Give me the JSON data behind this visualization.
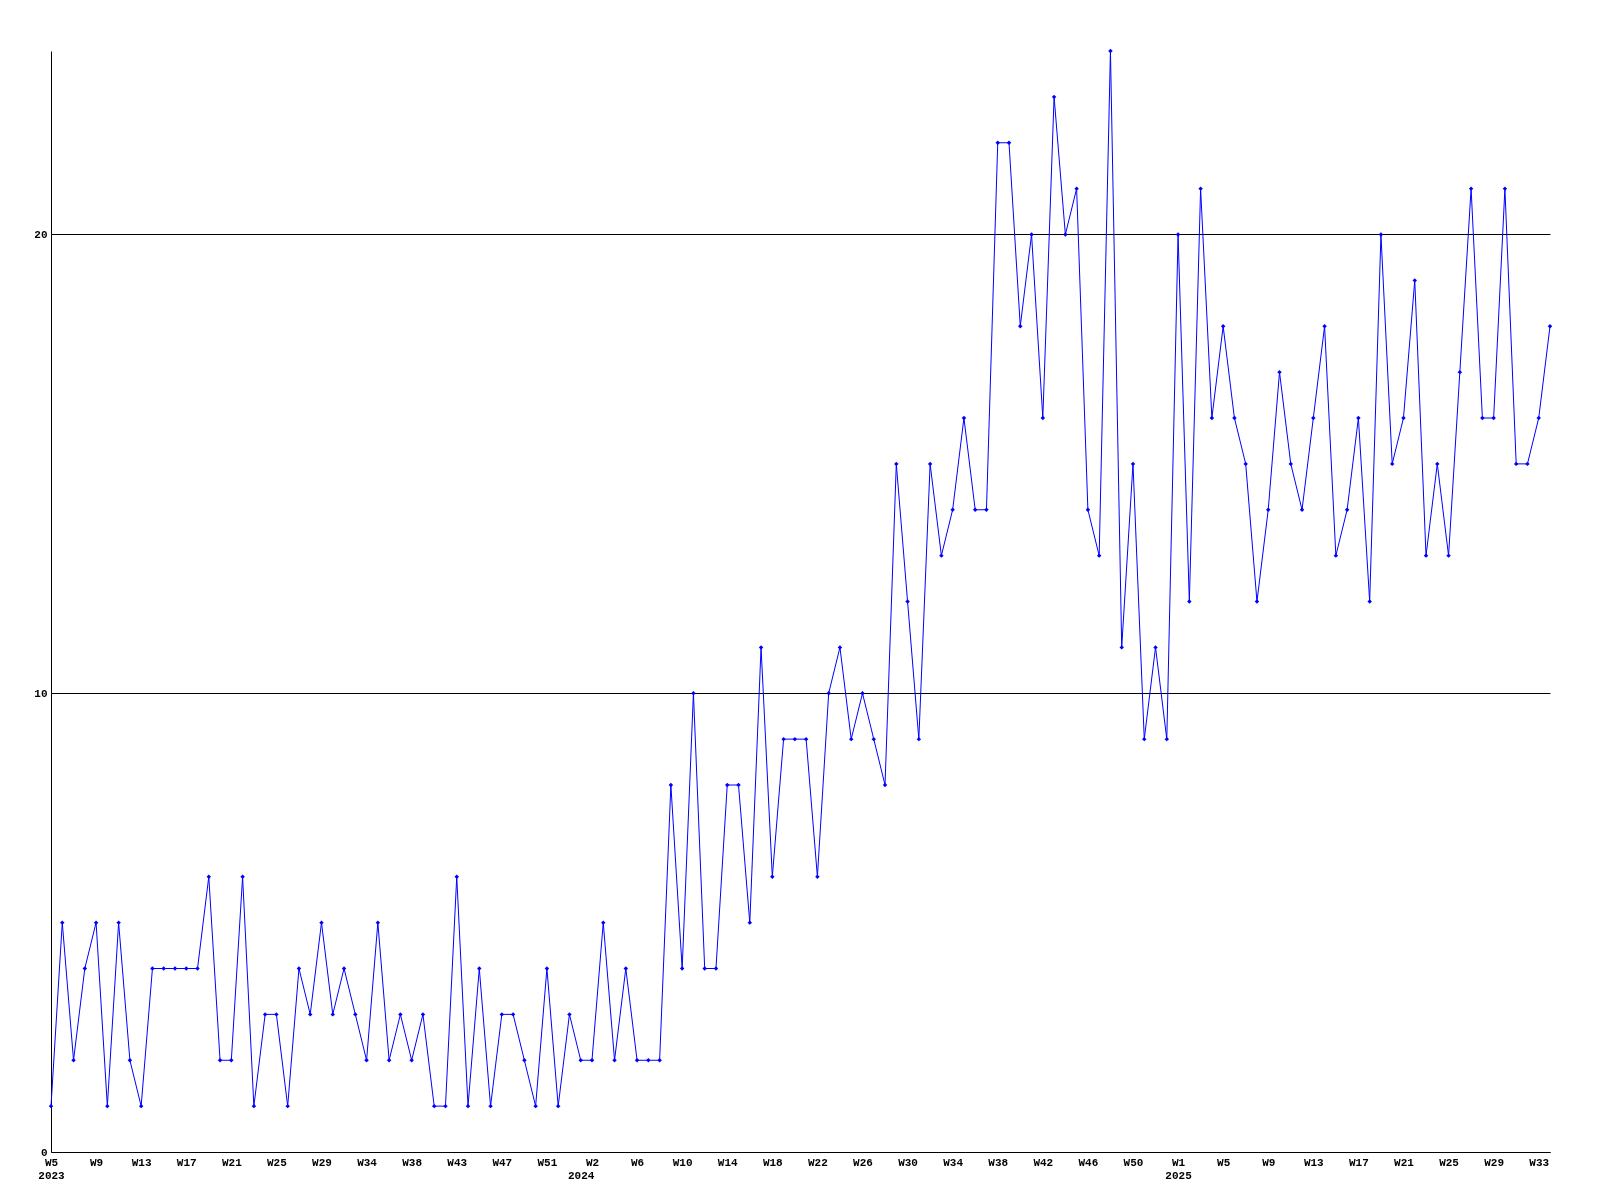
{
  "chart_data": {
    "type": "line",
    "categories": [
      "W5\n2023",
      null,
      null,
      null,
      "W9",
      null,
      null,
      null,
      "W13",
      null,
      null,
      null,
      "W17",
      null,
      null,
      null,
      "W21",
      null,
      null,
      null,
      "W25",
      null,
      null,
      null,
      "W29",
      null,
      null,
      null,
      "W34",
      null,
      null,
      null,
      "W38",
      null,
      null,
      null,
      "W43",
      null,
      null,
      null,
      "W47",
      null,
      null,
      null,
      "W51",
      null,
      null,
      "\n2024",
      "W2",
      null,
      null,
      null,
      "W6",
      null,
      null,
      null,
      "W10",
      null,
      null,
      null,
      "W14",
      null,
      null,
      null,
      "W18",
      null,
      null,
      null,
      "W22",
      null,
      null,
      null,
      "W26",
      null,
      null,
      null,
      "W30",
      null,
      null,
      null,
      "W34",
      null,
      null,
      null,
      "W38",
      null,
      null,
      null,
      "W42",
      null,
      null,
      null,
      "W46",
      null,
      null,
      null,
      "W50",
      null,
      null,
      null,
      "W1\n2025",
      null,
      null,
      null,
      "W5",
      null,
      null,
      null,
      "W9",
      null,
      null,
      null,
      "W13",
      null,
      null,
      null,
      "W17",
      null,
      null,
      null,
      "W21",
      null,
      null,
      null,
      "W25",
      null,
      null,
      null,
      "W29",
      null,
      null,
      null,
      "W33",
      null
    ],
    "series": [
      {
        "color": "#0000ff",
        "values": [
          1,
          5,
          2,
          4,
          5,
          1,
          5,
          2,
          1,
          4,
          4,
          4,
          4,
          4,
          6,
          2,
          2,
          6,
          1,
          3,
          3,
          1,
          4,
          3,
          5,
          3,
          4,
          3,
          2,
          5,
          2,
          3,
          2,
          3,
          1,
          1,
          6,
          1,
          4,
          1,
          3,
          3,
          2,
          1,
          4,
          1,
          3,
          2,
          2,
          5,
          2,
          4,
          2,
          2,
          2,
          8,
          4,
          10,
          4,
          4,
          8,
          8,
          5,
          11,
          6,
          9,
          9,
          9,
          6,
          10,
          11,
          9,
          10,
          9,
          8,
          15,
          12,
          9,
          15,
          13,
          14,
          16,
          14,
          14,
          22,
          22,
          18,
          20,
          16,
          23,
          20,
          21,
          14,
          13,
          24,
          11,
          15,
          9,
          11,
          9,
          20,
          12,
          21,
          16,
          18,
          16,
          15,
          12,
          14,
          17,
          15,
          14,
          16,
          18,
          13,
          14,
          16,
          12,
          20,
          15,
          16,
          19,
          13,
          15,
          13,
          17,
          21,
          16,
          16,
          21,
          15,
          15,
          16,
          18
        ]
      }
    ],
    "ylim": [
      0,
      24
    ],
    "yticks": [
      0,
      10,
      20
    ],
    "grid": "y",
    "marker": "diamond",
    "line_style": "solid"
  }
}
